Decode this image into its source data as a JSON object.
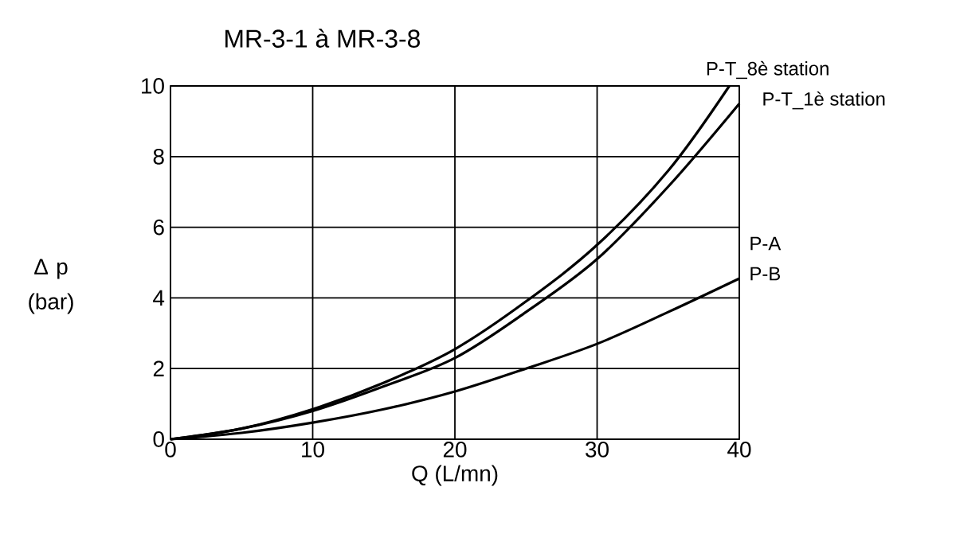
{
  "chart_data": {
    "type": "line",
    "title": "MR-3-1 à MR-3-8",
    "xlabel": "Q (L/mn)",
    "ylabel": "Δ p (bar)",
    "x": [
      0,
      5,
      10,
      15,
      20,
      25,
      30,
      35,
      39.3,
      40
    ],
    "series": [
      {
        "name": "P-T_8è station",
        "color": "#000000",
        "values": [
          0,
          0.3,
          0.85,
          1.6,
          2.55,
          3.9,
          5.5,
          7.6,
          10,
          null
        ]
      },
      {
        "name": "P-T_1è station",
        "color": "#000000",
        "values": [
          0,
          0.3,
          0.8,
          1.5,
          2.3,
          3.6,
          5.1,
          7.15,
          null,
          9.5
        ]
      },
      {
        "name": "P-A",
        "color": "#000000",
        "values": [
          0,
          0.18,
          0.47,
          0.85,
          1.35,
          2.0,
          2.7,
          3.6,
          null,
          4.55
        ]
      }
    ],
    "annotations": [
      {
        "text": "P-B",
        "x": 40,
        "y": 4.55
      }
    ],
    "xlim": [
      0,
      40
    ],
    "ylim": [
      0,
      10
    ],
    "xticks": [
      0,
      10,
      20,
      30,
      40
    ],
    "yticks": [
      0,
      2,
      4,
      6,
      8,
      10
    ],
    "grid": true,
    "legend": false,
    "marker": "none",
    "line_style": "solid"
  }
}
